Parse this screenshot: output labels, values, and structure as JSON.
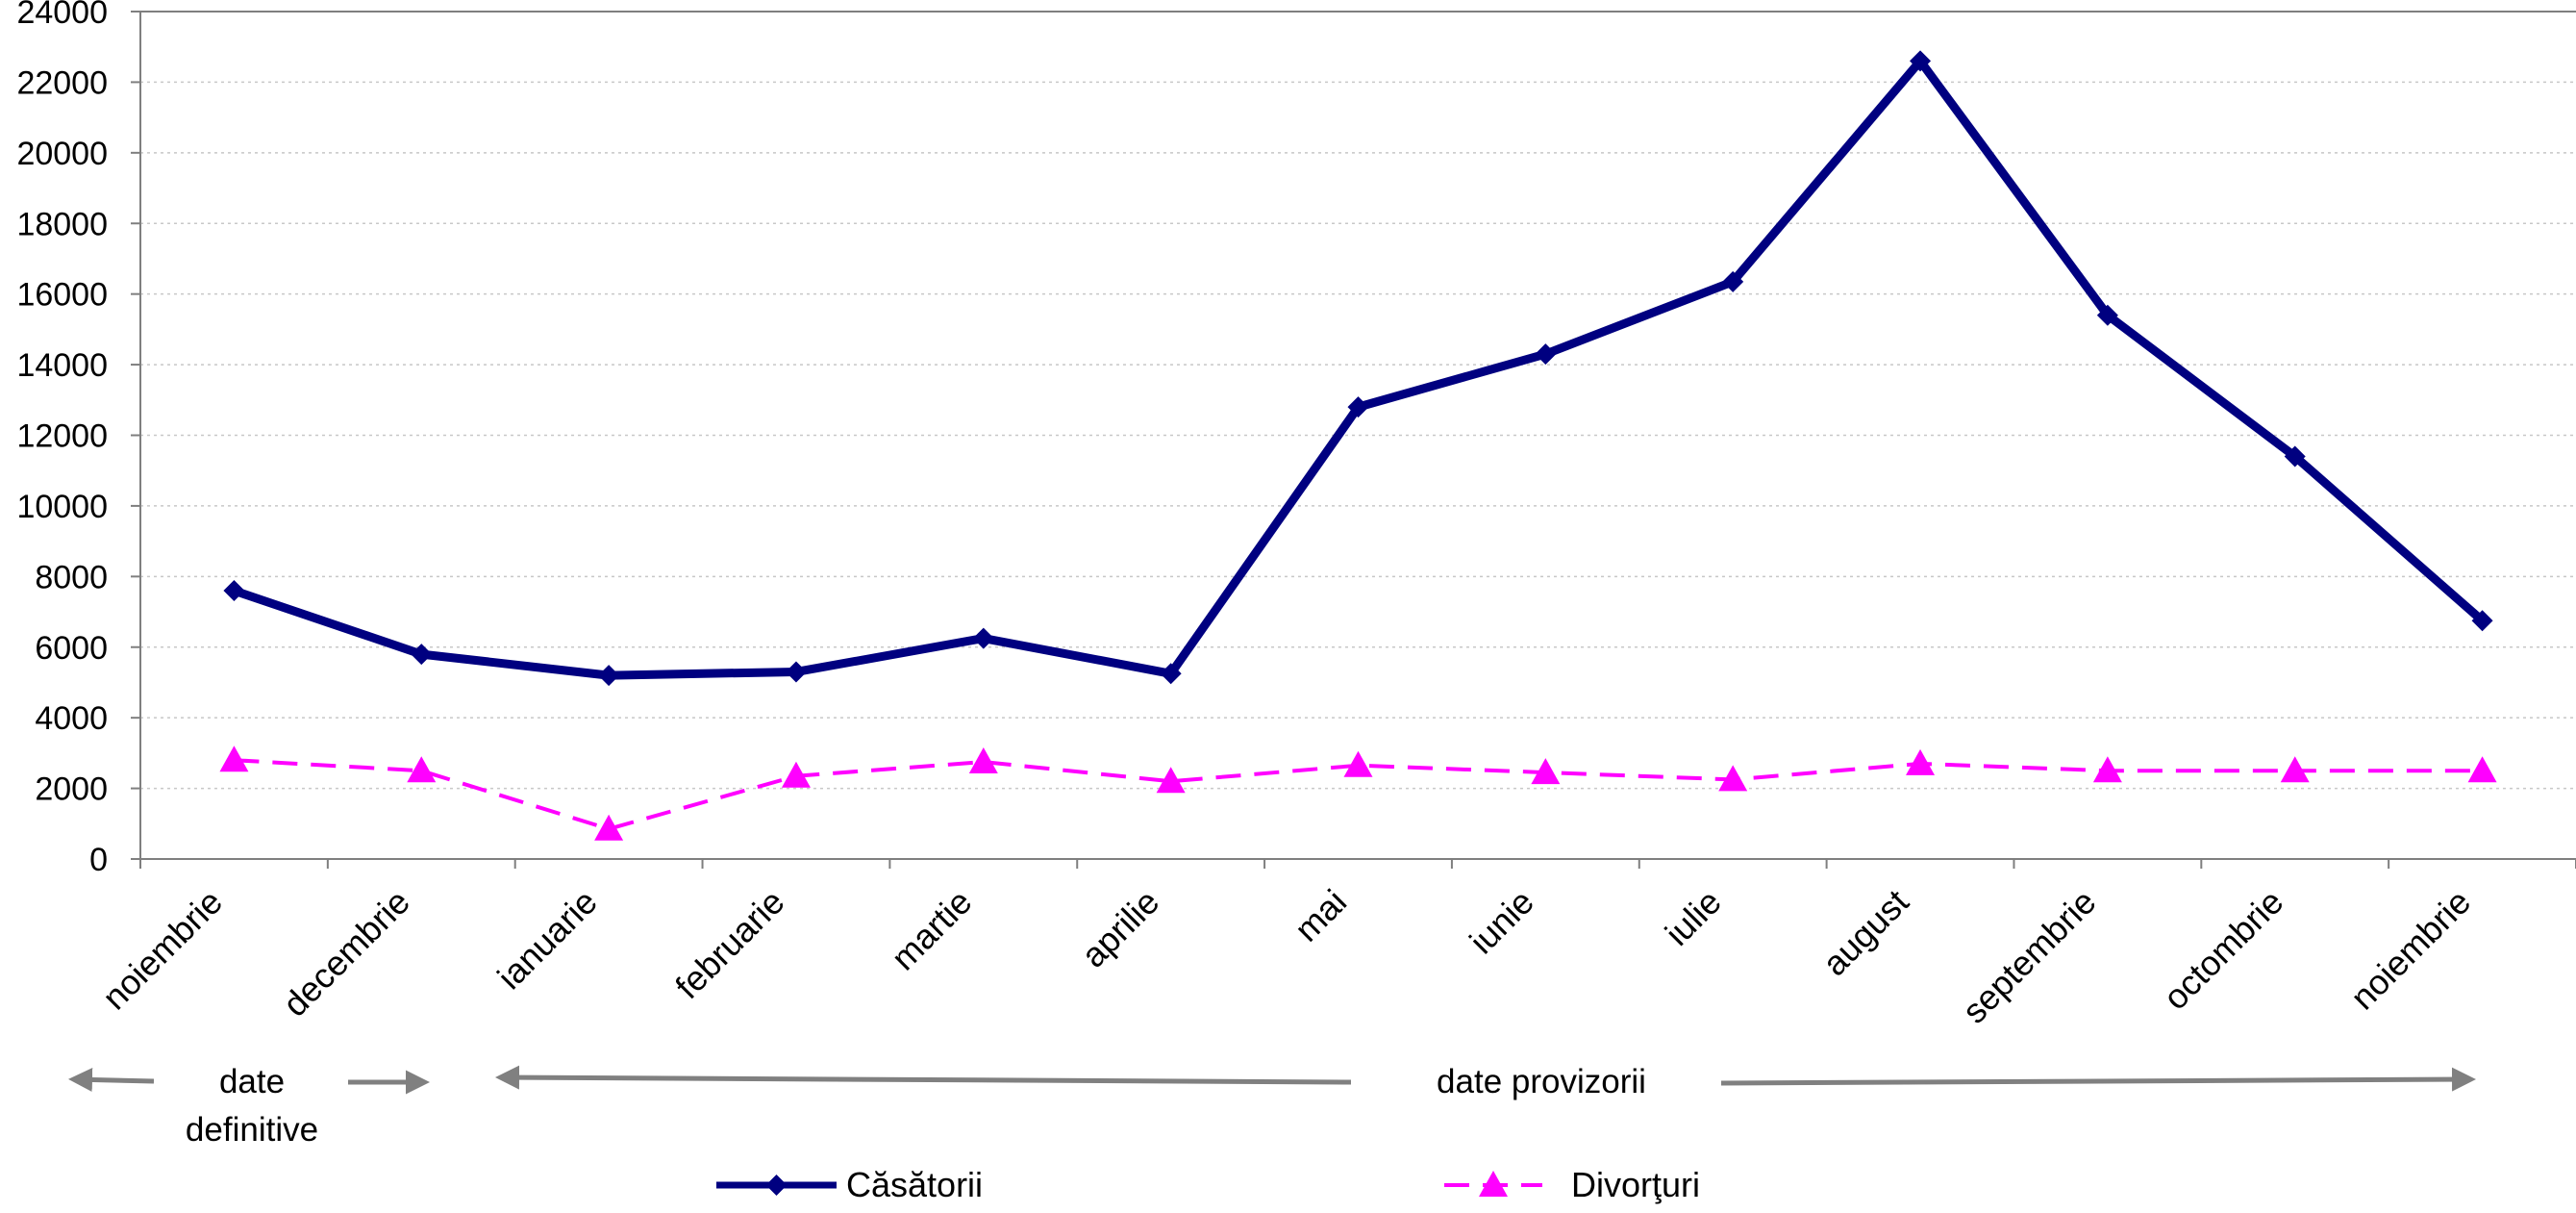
{
  "chart_data": {
    "type": "line",
    "categories": [
      "noiembrie",
      "decembrie",
      "ianuarie",
      "februarie",
      "martie",
      "aprilie",
      "mai",
      "iunie",
      "iulie",
      "august",
      "septembrie",
      "octombrie",
      "noiembrie"
    ],
    "series": [
      {
        "name": "Căsătorii",
        "values": [
          7600,
          5800,
          5200,
          5300,
          6250,
          5250,
          12800,
          14300,
          16350,
          22600,
          15400,
          11400,
          6750
        ],
        "color": "#000080",
        "marker": "diamond",
        "line": "solid"
      },
      {
        "name": "Divorţuri",
        "values": [
          2800,
          2500,
          850,
          2350,
          2750,
          2200,
          2650,
          2450,
          2250,
          2700,
          2500,
          2500,
          2500
        ],
        "color": "#ff00ff",
        "marker": "triangle",
        "line": "dashed"
      }
    ],
    "ylim": [
      0,
      24000
    ],
    "yticks": [
      0,
      2000,
      4000,
      6000,
      8000,
      10000,
      12000,
      14000,
      16000,
      18000,
      20000,
      22000,
      24000
    ],
    "grid": true,
    "legend_position": "bottom",
    "title": "",
    "xlabel": "",
    "ylabel": "",
    "annotations": {
      "definitive_line1": "date",
      "definitive_line2": "definitive",
      "provisional": "date provizorii"
    }
  }
}
